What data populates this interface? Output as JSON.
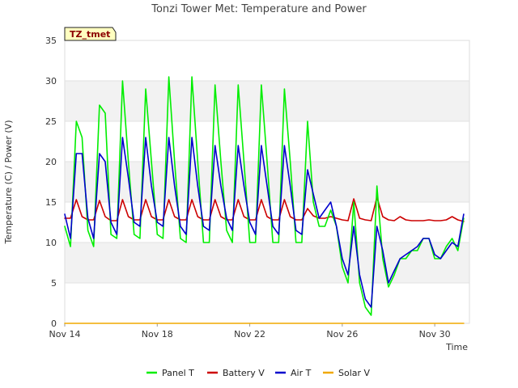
{
  "chart_data": {
    "type": "line",
    "title": "Tonzi Tower Met: Temperature and Power",
    "xlabel": "Time",
    "ylabel": "Temperature (C) / Power (V)",
    "site_tag": "TZ_tmet",
    "xlim": [
      0,
      17.5
    ],
    "ylim": [
      0,
      35
    ],
    "x_unit": "days since Nov 14",
    "yticks": [
      0,
      5,
      10,
      15,
      20,
      25,
      30,
      35
    ],
    "xticks": [
      {
        "value": 0,
        "label": "Nov 14"
      },
      {
        "value": 4,
        "label": "Nov 18"
      },
      {
        "value": 8,
        "label": "Nov 22"
      },
      {
        "value": 12,
        "label": "Nov 26"
      },
      {
        "value": 16,
        "label": "Nov 30"
      }
    ],
    "x": [
      0,
      0.25,
      0.5,
      0.75,
      1,
      1.25,
      1.5,
      1.75,
      2,
      2.25,
      2.5,
      2.75,
      3,
      3.25,
      3.5,
      3.75,
      4,
      4.25,
      4.5,
      4.75,
      5,
      5.25,
      5.5,
      5.75,
      6,
      6.25,
      6.5,
      6.75,
      7,
      7.25,
      7.5,
      7.75,
      8,
      8.25,
      8.5,
      8.75,
      9,
      9.25,
      9.5,
      9.75,
      10,
      10.25,
      10.5,
      10.75,
      11,
      11.25,
      11.5,
      11.75,
      12,
      12.25,
      12.5,
      12.75,
      13,
      13.25,
      13.5,
      13.75,
      14,
      14.25,
      14.5,
      14.75,
      15,
      15.25,
      15.5,
      15.75,
      16,
      16.25,
      16.5,
      16.75,
      17,
      17.25
    ],
    "series": [
      {
        "name": "Panel T",
        "color": "#00ee00",
        "values": [
          12,
          9.5,
          25,
          23,
          11.5,
          9.5,
          27,
          26,
          11,
          10.5,
          30,
          20,
          11,
          10.5,
          29,
          20,
          11,
          10.5,
          30.5,
          20,
          10.5,
          10,
          30.5,
          20,
          10,
          10,
          29.5,
          20,
          11.5,
          10,
          29.5,
          20,
          10,
          10,
          29.5,
          20,
          10,
          10,
          29,
          20,
          10,
          10,
          25,
          15,
          12,
          12,
          14,
          12,
          7,
          5,
          15,
          5,
          2,
          1,
          17,
          8,
          4.5,
          6,
          8,
          8,
          9,
          9,
          10.5,
          10.5,
          8,
          8,
          9.5,
          10.5,
          9,
          13
        ]
      },
      {
        "name": "Battery V",
        "color": "#cc0000",
        "values": [
          13,
          13,
          15.3,
          13.2,
          12.8,
          12.8,
          15.2,
          13.2,
          12.7,
          12.7,
          15.3,
          13.2,
          12.8,
          12.8,
          15.3,
          13.2,
          12.8,
          12.8,
          15.3,
          13.2,
          12.8,
          12.8,
          15.3,
          13.2,
          12.8,
          12.8,
          15.3,
          13.2,
          12.8,
          12.8,
          15.3,
          13.2,
          12.8,
          12.8,
          15.3,
          13.2,
          12.8,
          12.8,
          15.3,
          13.2,
          12.8,
          12.8,
          14.2,
          13.3,
          13,
          13,
          13.2,
          13,
          12.8,
          12.7,
          15.4,
          13,
          12.8,
          12.7,
          15.6,
          13.2,
          12.8,
          12.7,
          13.2,
          12.8,
          12.7,
          12.7,
          12.7,
          12.8,
          12.7,
          12.7,
          12.8,
          13.2,
          12.8,
          12.6
        ]
      },
      {
        "name": "Air T",
        "color": "#0000cc",
        "values": [
          13.5,
          10.5,
          21,
          21,
          13,
          10.5,
          21,
          20,
          12.5,
          11,
          23,
          18,
          12.5,
          12,
          23,
          17,
          12.5,
          12,
          23,
          17,
          12,
          11,
          23,
          17,
          12,
          11.5,
          22,
          17,
          13,
          11.5,
          22,
          17,
          12.5,
          11,
          22,
          17,
          12,
          11,
          22,
          17,
          11.5,
          11,
          19,
          16,
          13,
          14,
          15,
          12,
          8,
          6,
          12,
          6,
          3,
          2,
          12,
          9,
          5,
          6.5,
          8,
          8.5,
          9,
          9.5,
          10.5,
          10.5,
          8.5,
          8,
          9,
          10,
          9.5,
          13.5
        ]
      },
      {
        "name": "Solar V",
        "color": "#f0a800",
        "values": [
          0,
          0,
          0,
          0,
          0,
          0,
          0,
          0,
          0,
          0,
          0,
          0,
          0,
          0,
          0,
          0,
          0,
          0,
          0,
          0,
          0,
          0,
          0,
          0,
          0,
          0,
          0,
          0,
          0,
          0,
          0,
          0,
          0,
          0,
          0,
          0,
          0,
          0,
          0,
          0,
          0,
          0,
          0,
          0,
          0,
          0,
          0,
          0,
          0,
          0,
          0,
          0,
          0,
          0,
          0,
          0,
          0,
          0,
          0,
          0,
          0,
          0,
          0,
          0,
          0,
          0,
          0,
          0,
          0,
          0
        ]
      }
    ],
    "legend_position": "bottom-center",
    "grid": "alternating horizontal bands"
  }
}
